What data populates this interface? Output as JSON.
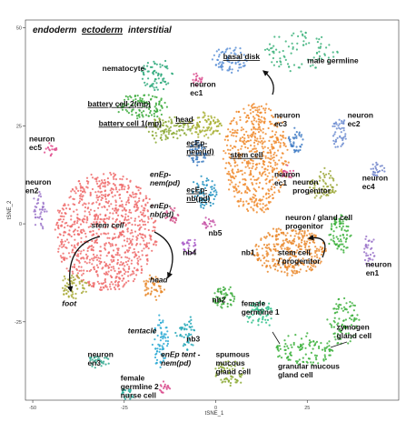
{
  "chart_data": {
    "type": "scatter",
    "title": "",
    "xlabel": "tSNE_1",
    "ylabel": "tSNE_2",
    "xlim": [
      -52,
      50
    ],
    "ylim": [
      -45,
      52
    ],
    "xticks": [
      -50,
      -25,
      0,
      25
    ],
    "yticks": [
      50,
      25,
      0,
      -25
    ],
    "legend": {
      "items": [
        {
          "text": "endoderm",
          "style": "italic"
        },
        {
          "text": "ectoderm",
          "style": "underline"
        },
        {
          "text": "interstitial",
          "style": "plain"
        }
      ],
      "placement": "top-left"
    },
    "clusters": [
      {
        "name": "nematocyte",
        "color": "#2ca87a",
        "cx": -16,
        "cy": 38,
        "rx": 5,
        "ry": 4,
        "n": 70
      },
      {
        "name": "neuron ec1",
        "color": "#d94a8c",
        "cx": -5,
        "cy": 37,
        "rx": 1.5,
        "ry": 1.5,
        "n": 18
      },
      {
        "name": "basal disk",
        "color": "#5b8fd6",
        "cx": 4,
        "cy": 42,
        "rx": 5,
        "ry": 3,
        "n": 70
      },
      {
        "name": "male germline",
        "color": "#3bb27a",
        "cx": 23,
        "cy": 44,
        "rx": 10,
        "ry": 5,
        "n": 90
      },
      {
        "name": "battery cell 2(mp)",
        "color": "#3aaa3a",
        "cx": -20,
        "cy": 30,
        "rx": 7,
        "ry": 3,
        "n": 110
      },
      {
        "name": "battery cell 1(mp)",
        "color": "#8aa832",
        "cx": -13,
        "cy": 24,
        "rx": 6,
        "ry": 3,
        "n": 100
      },
      {
        "name": "head",
        "color": "#a8b034",
        "cx": -3,
        "cy": 25,
        "rx": 5,
        "ry": 3,
        "n": 90
      },
      {
        "name": "neuron ec3",
        "color": "#3f7bc4",
        "cx": 22,
        "cy": 21,
        "rx": 2,
        "ry": 3,
        "n": 40
      },
      {
        "name": "neuron ec2",
        "color": "#6b8bd0",
        "cx": 34,
        "cy": 23,
        "rx": 2,
        "ry": 4,
        "n": 45
      },
      {
        "name": "neuron ec5",
        "color": "#e0508f",
        "cx": -45,
        "cy": 19,
        "rx": 1.5,
        "ry": 1.5,
        "n": 18
      },
      {
        "name": "stem cell",
        "color": "#f08a2c",
        "cx": 11,
        "cy": 17,
        "rx": 9,
        "ry": 14,
        "n": 520
      },
      {
        "name": "ecEp-nem(id)",
        "color": "#3f7ec2",
        "cx": -5,
        "cy": 18,
        "rx": 2.5,
        "ry": 3,
        "n": 55
      },
      {
        "name": "ecEp-nb(pd)",
        "color": "#1c8fbf",
        "cx": -3,
        "cy": 8,
        "rx": 3,
        "ry": 4,
        "n": 70
      },
      {
        "name": "neuron ec1",
        "color": "#d94a8c",
        "cx": 20,
        "cy": 13,
        "rx": 2,
        "ry": 1.5,
        "n": 20
      },
      {
        "name": "neuron progenitor",
        "color": "#9ca83a",
        "cx": 29,
        "cy": 10,
        "rx": 4,
        "ry": 4,
        "n": 70
      },
      {
        "name": "neuron ec4",
        "color": "#6f82c9",
        "cx": 44,
        "cy": 14,
        "rx": 2,
        "ry": 2,
        "n": 25
      },
      {
        "name": "neuron en2",
        "color": "#9a73c9",
        "cx": -48,
        "cy": 3,
        "rx": 1.5,
        "ry": 5,
        "n": 40
      },
      {
        "name": "enEp-nem(pd)",
        "color": "#ee6b6b",
        "cx": -30,
        "cy": -2,
        "rx": 14,
        "ry": 15,
        "n": 900
      },
      {
        "name": "enEp-nb(pd)",
        "color": "#d4528a",
        "cx": -12,
        "cy": 2,
        "rx": 2,
        "ry": 2,
        "n": 25
      },
      {
        "name": "nb5",
        "color": "#c44fa3",
        "cx": -2,
        "cy": 0,
        "rx": 1.5,
        "ry": 1.5,
        "n": 18
      },
      {
        "name": "nb4",
        "color": "#a552c4",
        "cx": -7,
        "cy": -6,
        "rx": 2,
        "ry": 2,
        "n": 25
      },
      {
        "name": "neuron / gland cell progenitor",
        "color": "#39b039",
        "cx": 34,
        "cy": -2,
        "rx": 3,
        "ry": 5,
        "n": 80
      },
      {
        "name": "neuron en1",
        "color": "#9a73c9",
        "cx": 42,
        "cy": -7,
        "rx": 1.5,
        "ry": 4,
        "n": 35
      },
      {
        "name": "nb1",
        "color": "#ea8a2e",
        "cx": 20,
        "cy": -7,
        "rx": 10,
        "ry": 6,
        "n": 330
      },
      {
        "name": "head",
        "color": "#e8892c",
        "cx": -17,
        "cy": -16,
        "rx": 3,
        "ry": 3,
        "n": 50
      },
      {
        "name": "foot",
        "color": "#a7a834",
        "cx": -39,
        "cy": -16,
        "rx": 4,
        "ry": 3,
        "n": 60
      },
      {
        "name": "nb2",
        "color": "#3aaa3a",
        "cx": 2,
        "cy": -19,
        "rx": 3,
        "ry": 3,
        "n": 60
      },
      {
        "name": "female germline 1",
        "color": "#2fbf8a",
        "cx": 12,
        "cy": -23,
        "rx": 4,
        "ry": 3,
        "n": 65
      },
      {
        "name": "tentacle",
        "color": "#2aa9d4",
        "cx": -15,
        "cy": -30,
        "rx": 2,
        "ry": 7,
        "n": 70
      },
      {
        "name": "nb3",
        "color": "#1ea6b6",
        "cx": -8,
        "cy": -28,
        "rx": 2.5,
        "ry": 4,
        "n": 45
      },
      {
        "name": "neuron en3",
        "color": "#2ea88e",
        "cx": -32,
        "cy": -35,
        "rx": 3,
        "ry": 1.5,
        "n": 30
      },
      {
        "name": "enEp tent-nem(pd)",
        "color": "#d94a8c",
        "cx": -14,
        "cy": -42,
        "rx": 1.5,
        "ry": 1.5,
        "n": 18
      },
      {
        "name": "female germline 2 nurse cell",
        "color": "#2ab0a0",
        "cx": -24,
        "cy": -43,
        "rx": 2,
        "ry": 1.5,
        "n": 20
      },
      {
        "name": "spumous mucous gland cell",
        "color": "#8aa832",
        "cx": 4,
        "cy": -38,
        "rx": 4,
        "ry": 3,
        "n": 60
      },
      {
        "name": "granular mucous gland cell",
        "color": "#39b039",
        "cx": 24,
        "cy": -32,
        "rx": 8,
        "ry": 4,
        "n": 110
      },
      {
        "name": "zymogen gland cell",
        "color": "#3db03d",
        "cx": 35,
        "cy": -25,
        "rx": 4,
        "ry": 6,
        "n": 90
      }
    ],
    "labels": [
      {
        "text": "nematocyte",
        "x": -31,
        "y": 39,
        "style": "plain"
      },
      {
        "text": "neuron ec1",
        "x": -7,
        "y": 35,
        "style": "plain",
        "lines": [
          "neuron",
          "ec1"
        ]
      },
      {
        "text": "basal disk",
        "x": 2,
        "y": 42,
        "style": "underline"
      },
      {
        "text": "male germline",
        "x": 25,
        "y": 41,
        "style": "plain"
      },
      {
        "text": "battery cell 2(mp)",
        "x": -35,
        "y": 30,
        "style": "underline"
      },
      {
        "text": "battery cell 1(mp)",
        "x": -32,
        "y": 25,
        "style": "underline"
      },
      {
        "text": "head",
        "x": -11,
        "y": 26,
        "style": "underline"
      },
      {
        "text": "neuron ec3",
        "x": 16,
        "y": 27,
        "style": "plain",
        "lines": [
          "neuron",
          "ec3"
        ]
      },
      {
        "text": "neuron ec2",
        "x": 36,
        "y": 27,
        "style": "plain",
        "lines": [
          "neuron",
          "ec2"
        ]
      },
      {
        "text": "neuron ec5",
        "x": -51,
        "y": 21,
        "style": "plain",
        "lines": [
          "neuron",
          "ec5"
        ]
      },
      {
        "text": "ecEp-nem(id)",
        "x": -8,
        "y": 20,
        "style": "underline",
        "lines": [
          "ecEp-",
          "nem(id)"
        ]
      },
      {
        "text": "stem cell",
        "x": 4,
        "y": 17,
        "style": "underline"
      },
      {
        "text": "neuron ec1",
        "x": 16,
        "y": 12,
        "style": "plain",
        "lines": [
          "neuron",
          "ec1"
        ]
      },
      {
        "text": "neuron progenitor",
        "x": 21,
        "y": 10,
        "style": "plain",
        "lines": [
          "neuron",
          "progenitor"
        ]
      },
      {
        "text": "neuron ec4",
        "x": 40,
        "y": 11,
        "style": "plain",
        "lines": [
          "neuron",
          "ec4"
        ]
      },
      {
        "text": "neuron en2",
        "x": -52,
        "y": 10,
        "style": "plain",
        "lines": [
          "neuron",
          "en2"
        ]
      },
      {
        "text": "enEp-nem(pd)",
        "x": -18,
        "y": 12,
        "style": "italic",
        "lines": [
          "enEp-",
          "nem(pd)"
        ]
      },
      {
        "text": "ecEp-nb(pd)",
        "x": -8,
        "y": 8,
        "style": "underline",
        "lines": [
          "ecEp-",
          "nb(pd)"
        ]
      },
      {
        "text": "enEp-nb(pd)",
        "x": -18,
        "y": 4,
        "style": "italic",
        "lines": [
          "enEp-",
          "nb(pd)"
        ]
      },
      {
        "text": "neuron / gland cell progenitor",
        "x": 19,
        "y": 1,
        "style": "plain",
        "lines": [
          "neuron / gland cell",
          "progenitor"
        ]
      },
      {
        "text": "stem cell",
        "x": -34,
        "y": -1,
        "style": "italic"
      },
      {
        "text": "nb5",
        "x": -2,
        "y": -3,
        "style": "plain"
      },
      {
        "text": "nb4",
        "x": -9,
        "y": -8,
        "style": "plain"
      },
      {
        "text": "nb1",
        "x": 7,
        "y": -8,
        "style": "plain"
      },
      {
        "text": "stem cell / progenitor",
        "x": 17,
        "y": -8,
        "style": "plain",
        "lines": [
          "stem cell",
          "/ progenitor"
        ]
      },
      {
        "text": "neuron en1",
        "x": 41,
        "y": -11,
        "style": "plain",
        "lines": [
          "neuron",
          "en1"
        ]
      },
      {
        "text": "head",
        "x": -18,
        "y": -15,
        "style": "italic"
      },
      {
        "text": "foot",
        "x": -42,
        "y": -21,
        "style": "italic"
      },
      {
        "text": "nb2",
        "x": -1,
        "y": -20,
        "style": "plain"
      },
      {
        "text": "female germline 1",
        "x": 7,
        "y": -21,
        "style": "plain",
        "lines": [
          "female",
          "germline 1"
        ]
      },
      {
        "text": "tentacle",
        "x": -24,
        "y": -28,
        "style": "italic"
      },
      {
        "text": "nb3",
        "x": -8,
        "y": -30,
        "style": "plain"
      },
      {
        "text": "zymogen gland cell",
        "x": 33,
        "y": -27,
        "style": "plain",
        "lines": [
          "zymogen",
          "gland cell"
        ]
      },
      {
        "text": "neuron en3",
        "x": -35,
        "y": -34,
        "style": "plain",
        "lines": [
          "neuron",
          "en3"
        ]
      },
      {
        "text": "enEp tent-nem(pd)",
        "x": -15,
        "y": -34,
        "style": "italic",
        "lines": [
          "enEp tent -",
          "nem(pd)"
        ]
      },
      {
        "text": "spumous mucous gland cell",
        "x": 0,
        "y": -34,
        "style": "plain",
        "lines": [
          "spumous",
          "mucous",
          "gland cell"
        ]
      },
      {
        "text": "granular mucous gland cell",
        "x": 17,
        "y": -37,
        "style": "plain",
        "lines": [
          "granular mucous",
          "gland cell"
        ]
      },
      {
        "text": "female germline 2 nurse cell",
        "x": -26,
        "y": -40,
        "style": "plain",
        "lines": [
          "female",
          "germline 2",
          "nurse cell"
        ]
      }
    ],
    "grid": false
  }
}
